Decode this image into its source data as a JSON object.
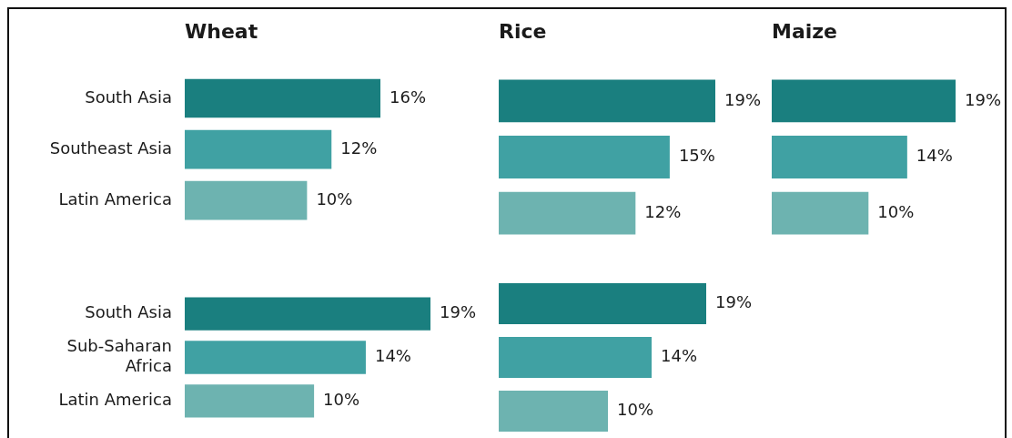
{
  "chart_data": [
    {
      "type": "bar",
      "orientation": "horizontal",
      "title": "Wheat",
      "categories": [
        "South Asia",
        "Southeast Asia",
        "Latin America"
      ],
      "values": [
        16,
        12,
        10
      ],
      "value_labels": [
        "16%",
        "12%",
        "10%"
      ],
      "colors": [
        "#1a7f7f",
        "#40a1a3",
        "#6db3b0"
      ],
      "tick_labels": "y"
    },
    {
      "type": "bar",
      "orientation": "horizontal",
      "title": "Rice",
      "categories": [
        null,
        null,
        null
      ],
      "values": [
        19,
        15,
        12
      ],
      "value_labels": [
        "19%",
        "15%",
        "12%"
      ],
      "colors": [
        "#1a7f7f",
        "#40a1a3",
        "#6db3b0"
      ],
      "tick_labels": false
    },
    {
      "type": "bar",
      "orientation": "horizontal",
      "title": "Maize",
      "categories": [
        null,
        null,
        null
      ],
      "values": [
        19,
        14,
        10
      ],
      "value_labels": [
        "19%",
        "14%",
        "10%"
      ],
      "colors": [
        "#1a7f7f",
        "#40a1a3",
        "#6db3b0"
      ],
      "tick_labels": false
    },
    {
      "type": "bar",
      "orientation": "horizontal",
      "categories": [
        "South Asia",
        "Sub-Saharan Africa",
        "Latin America"
      ],
      "values": [
        19,
        14,
        10
      ],
      "value_labels": [
        "19%",
        "14%",
        "10%"
      ],
      "colors": [
        "#1a7f7f",
        "#40a1a3",
        "#6db3b0"
      ],
      "tick_labels": "y"
    },
    {
      "type": "bar",
      "orientation": "horizontal",
      "categories": [
        null,
        null,
        null
      ],
      "values": [
        19,
        14,
        10
      ],
      "value_labels": [
        "19%",
        "14%",
        "10%"
      ],
      "colors": [
        "#1a7f7f",
        "#40a1a3",
        "#6db3b0"
      ],
      "tick_labels": false
    }
  ]
}
